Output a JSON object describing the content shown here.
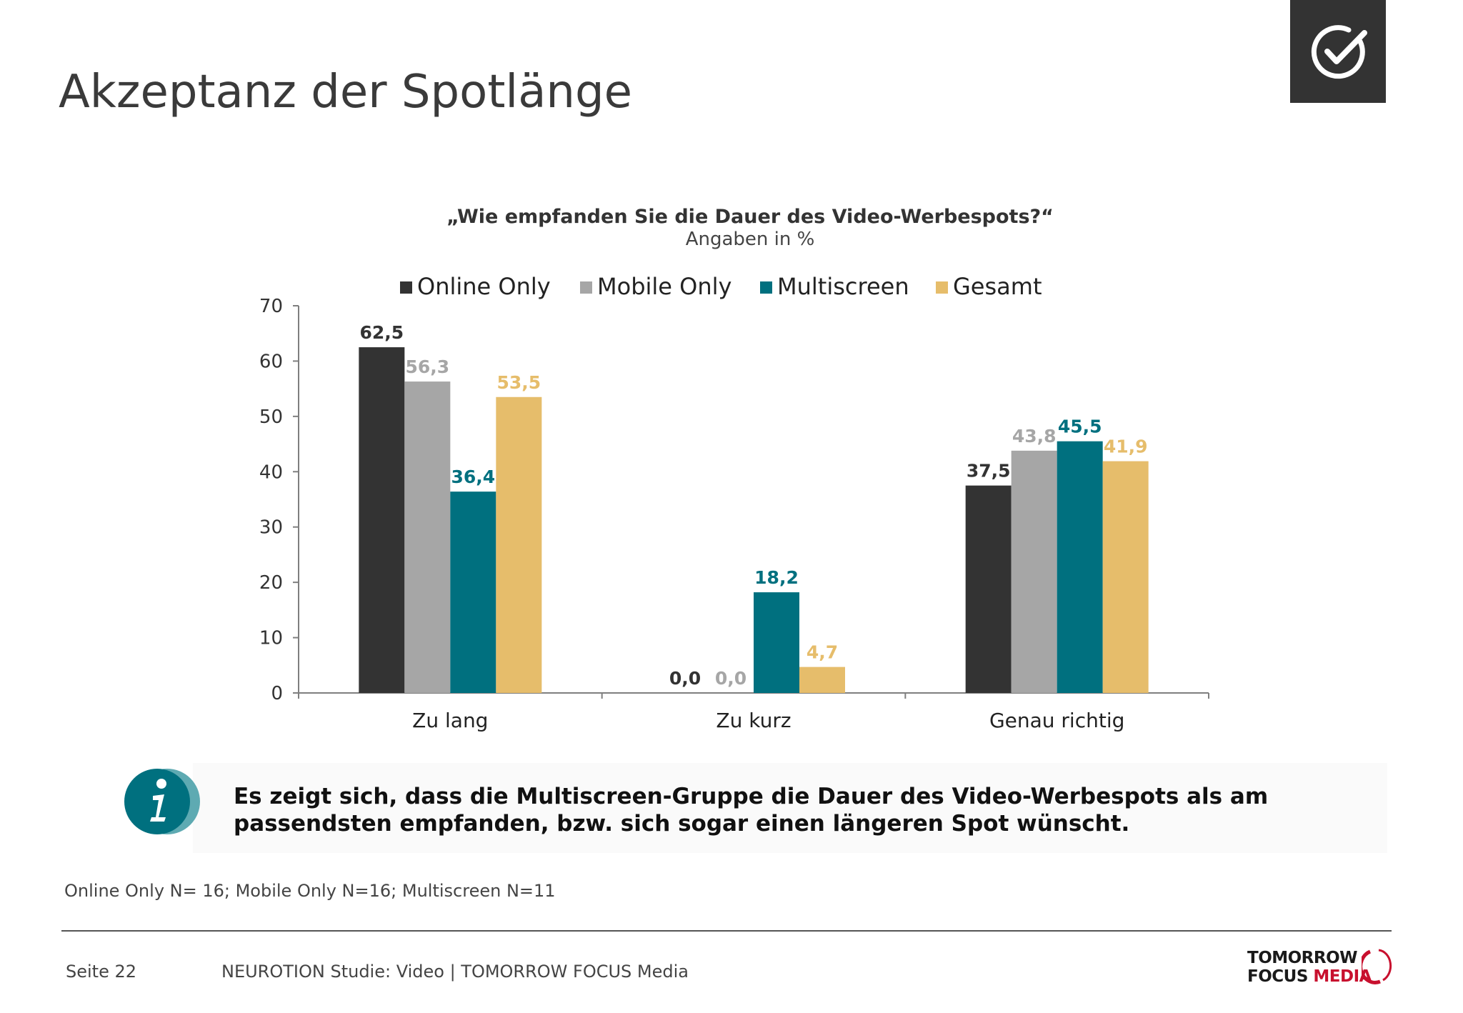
{
  "page": {
    "title": "Akzeptanz der Spotlänge",
    "question": "„Wie empfanden Sie die Dauer des Video-Werbespots?“",
    "unit_note": "Angaben in %",
    "insight": "Es zeigt sich, dass die Multiscreen-Gruppe die Dauer des Video-Werbespots als am passendsten empfanden, bzw. sich sogar einen längeren Spot wünscht.",
    "sample_note": "Online Only N= 16; Mobile Only N=16; Multiscreen N=11",
    "footer_page": "Seite 22",
    "footer_source": "NEUROTION Studie: Video | TOMORROW FOCUS Media",
    "logo_line1": "TOMORROW",
    "logo_line2a": "FOCUS ",
    "logo_line2b": "MEDIA"
  },
  "icons": {
    "badge": "checkmark-circle-icon",
    "info": "info-circle-icon"
  },
  "colors": {
    "online_only": "#333333",
    "mobile_only": "#a6a6a6",
    "multiscreen": "#00707f",
    "gesamt": "#e6bd6b",
    "brand_red": "#c8102e"
  },
  "chart_data": {
    "type": "bar",
    "title": "„Wie empfanden Sie die Dauer des Video-Werbespots?“",
    "subtitle": "Angaben in %",
    "categories": [
      "Zu lang",
      "Zu kurz",
      "Genau richtig"
    ],
    "series": [
      {
        "name": "Online Only",
        "values": [
          62.5,
          0.0,
          37.5
        ],
        "labels": [
          "62,5",
          "0,0",
          "37,5"
        ],
        "color": "#333333"
      },
      {
        "name": "Mobile Only",
        "values": [
          56.3,
          0.0,
          43.8
        ],
        "labels": [
          "56,3",
          "0,0",
          "43,8"
        ],
        "color": "#a6a6a6"
      },
      {
        "name": "Multiscreen",
        "values": [
          36.4,
          18.2,
          45.5
        ],
        "labels": [
          "36,4",
          "18,2",
          "45,5"
        ],
        "color": "#00707f"
      },
      {
        "name": "Gesamt",
        "values": [
          53.5,
          4.7,
          41.9
        ],
        "labels": [
          "53,5",
          "4,7",
          "41,9"
        ],
        "color": "#e6bd6b"
      }
    ],
    "yticks": [
      "0",
      "10",
      "20",
      "30",
      "40",
      "50",
      "60",
      "70"
    ],
    "ylim": [
      0,
      70
    ],
    "legend": "top",
    "grid": false
  }
}
